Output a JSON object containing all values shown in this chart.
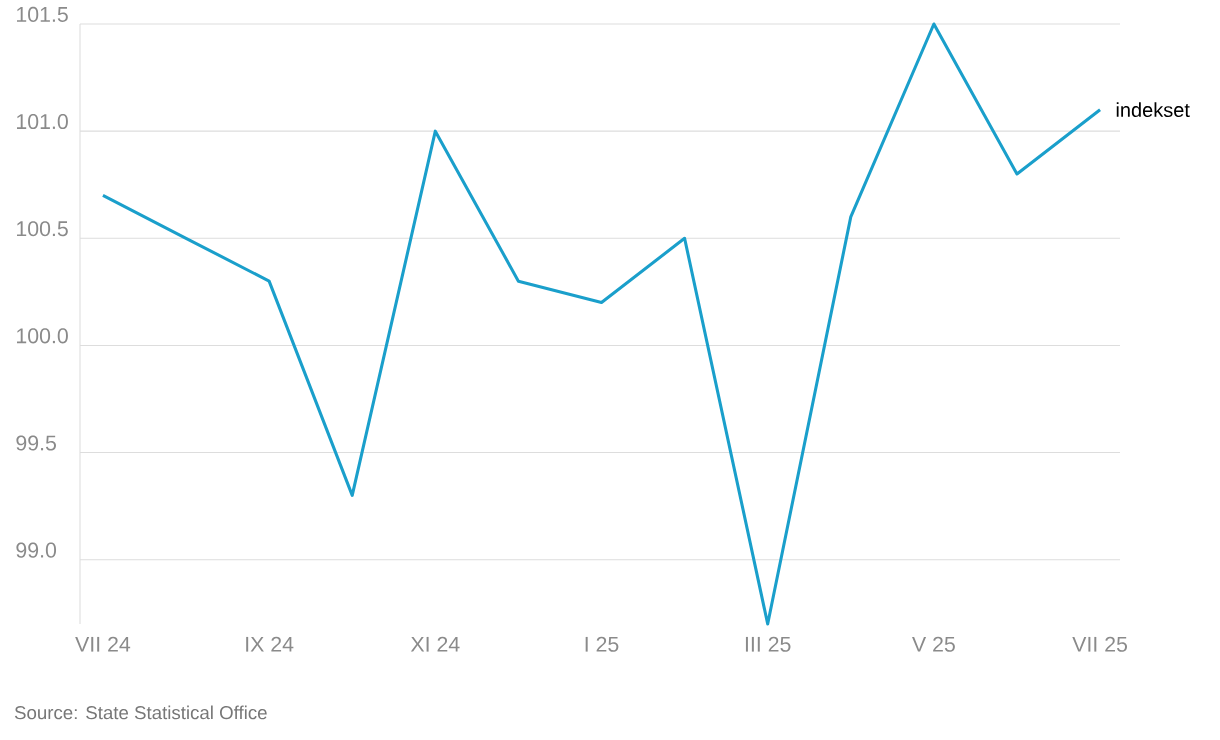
{
  "chart_data": {
    "type": "line",
    "categories": [
      "VII 24",
      null,
      "IX 24",
      null,
      "XI 24",
      null,
      "I 25",
      null,
      "III 25",
      null,
      "V 25",
      null,
      "VII 25"
    ],
    "series": [
      {
        "name": "indekset",
        "color": "#1a9fcb",
        "values": [
          100.7,
          100.5,
          100.3,
          99.3,
          101.0,
          100.3,
          100.2,
          100.5,
          98.7,
          100.6,
          101.5,
          100.8,
          101.1
        ]
      }
    ],
    "yticks": [
      {
        "value": 99,
        "label": "99.0"
      },
      99.5,
      {
        "value": 100,
        "label": "100.0"
      },
      100.5,
      {
        "value": 101,
        "label": "101.0"
      },
      101.5
    ],
    "ylim": [
      98.7,
      101.5
    ],
    "grid": "y",
    "annotations": [
      "Source: State Statistical Office"
    ]
  }
}
